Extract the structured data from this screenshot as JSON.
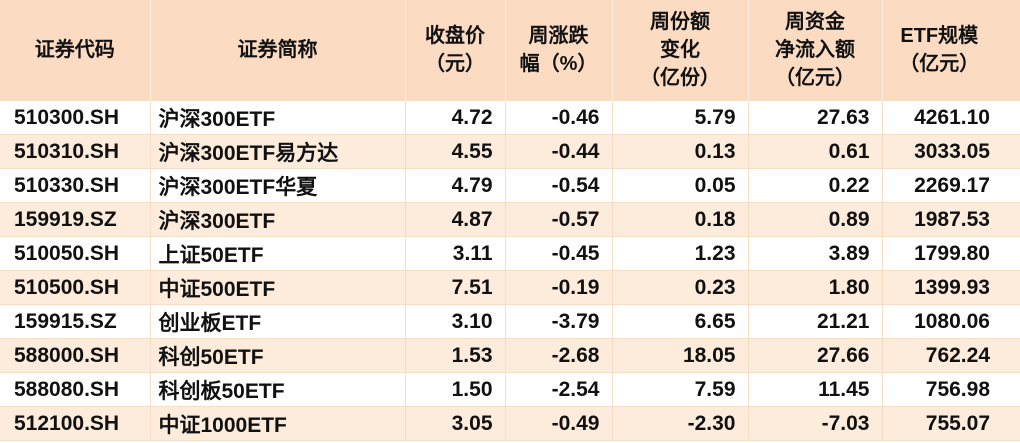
{
  "chart_data": {
    "type": "table",
    "title": "",
    "columns": [
      {
        "id": "code",
        "label": "证券代码",
        "align": "left"
      },
      {
        "id": "name",
        "label": "证券简称",
        "align": "left"
      },
      {
        "id": "close",
        "label": "收盘价\n（元）",
        "align": "right"
      },
      {
        "id": "pct",
        "label": "周涨跌\n幅（%）",
        "align": "right"
      },
      {
        "id": "share",
        "label": "周份额\n变化\n（亿份）",
        "align": "right"
      },
      {
        "id": "inflow",
        "label": "周资金\n净流入额\n（亿元）",
        "align": "right"
      },
      {
        "id": "scale",
        "label": "ETF规模\n（亿元）",
        "align": "right"
      }
    ],
    "rows": [
      [
        "510300.SH",
        "沪深300ETF",
        "4.72",
        "-0.46",
        "5.79",
        "27.63",
        "4261.10"
      ],
      [
        "510310.SH",
        "沪深300ETF易方达",
        "4.55",
        "-0.44",
        "0.13",
        "0.61",
        "3033.05"
      ],
      [
        "510330.SH",
        "沪深300ETF华夏",
        "4.79",
        "-0.54",
        "0.05",
        "0.22",
        "2269.17"
      ],
      [
        "159919.SZ",
        "沪深300ETF",
        "4.87",
        "-0.57",
        "0.18",
        "0.89",
        "1987.53"
      ],
      [
        "510050.SH",
        "上证50ETF",
        "3.11",
        "-0.45",
        "1.23",
        "3.89",
        "1799.80"
      ],
      [
        "510500.SH",
        "中证500ETF",
        "7.51",
        "-0.19",
        "0.23",
        "1.80",
        "1399.93"
      ],
      [
        "159915.SZ",
        "创业板ETF",
        "3.10",
        "-3.79",
        "6.65",
        "21.21",
        "1080.06"
      ],
      [
        "588000.SH",
        "科创50ETF",
        "1.53",
        "-2.68",
        "18.05",
        "27.66",
        "762.24"
      ],
      [
        "588080.SH",
        "科创板50ETF",
        "1.50",
        "-2.54",
        "7.59",
        "11.45",
        "756.98"
      ],
      [
        "512100.SH",
        "中证1000ETF",
        "3.05",
        "-0.49",
        "-2.30",
        "-7.03",
        "755.07"
      ]
    ],
    "colors": {
      "header_bg": "#fbdcc3",
      "row_stripe_bg": "#fdebdc",
      "row_plain_bg": "#ffffff",
      "grid_line": "#f8ddc6",
      "text": "#111111"
    }
  }
}
